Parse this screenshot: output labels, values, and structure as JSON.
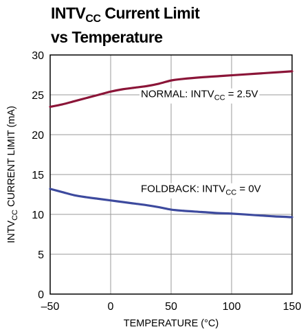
{
  "chart_data": {
    "type": "line",
    "title": {
      "line1_main": "INTV",
      "line1_sub": "CC",
      "line1_rest": " Current Limit",
      "line2": "vs Temperature"
    },
    "xlabel": "TEMPERATURE (°C)",
    "ylabel": {
      "main": "INTV",
      "sub": "CC",
      "rest": " CURRENT LIMIT (mA)"
    },
    "xlim": [
      -50,
      150
    ],
    "ylim": [
      0,
      30
    ],
    "xticks": [
      -50,
      0,
      50,
      100,
      150
    ],
    "xtick_labels": [
      "–50",
      "0",
      "50",
      "100",
      "150"
    ],
    "yticks": [
      0,
      5,
      10,
      15,
      20,
      25,
      30
    ],
    "ytick_labels": [
      "0",
      "5",
      "10",
      "15",
      "20",
      "25",
      "30"
    ],
    "grid": true,
    "series": [
      {
        "name": {
          "main": "NORMAL: INTV",
          "sub": "CC",
          "rest": " = 2.5V"
        },
        "color": "#8b1538",
        "x": [
          -50,
          -40,
          -30,
          -20,
          -10,
          0,
          10,
          20,
          30,
          40,
          50,
          60,
          75,
          90,
          100,
          120,
          135,
          150
        ],
        "y": [
          23.5,
          23.8,
          24.2,
          24.6,
          25.0,
          25.4,
          25.7,
          25.9,
          26.1,
          26.4,
          26.8,
          27.0,
          27.2,
          27.35,
          27.45,
          27.65,
          27.8,
          27.95
        ]
      },
      {
        "name": {
          "main": "FOLDBACK: INTV",
          "sub": "CC",
          "rest": " = 0V"
        },
        "color": "#3d4a9e",
        "x": [
          -50,
          -40,
          -30,
          -20,
          -10,
          0,
          10,
          20,
          30,
          40,
          50,
          60,
          75,
          90,
          100,
          120,
          135,
          150
        ],
        "y": [
          13.2,
          12.8,
          12.4,
          12.15,
          11.95,
          11.75,
          11.55,
          11.35,
          11.15,
          10.9,
          10.6,
          10.45,
          10.3,
          10.15,
          10.1,
          9.9,
          9.75,
          9.65
        ]
      }
    ]
  }
}
